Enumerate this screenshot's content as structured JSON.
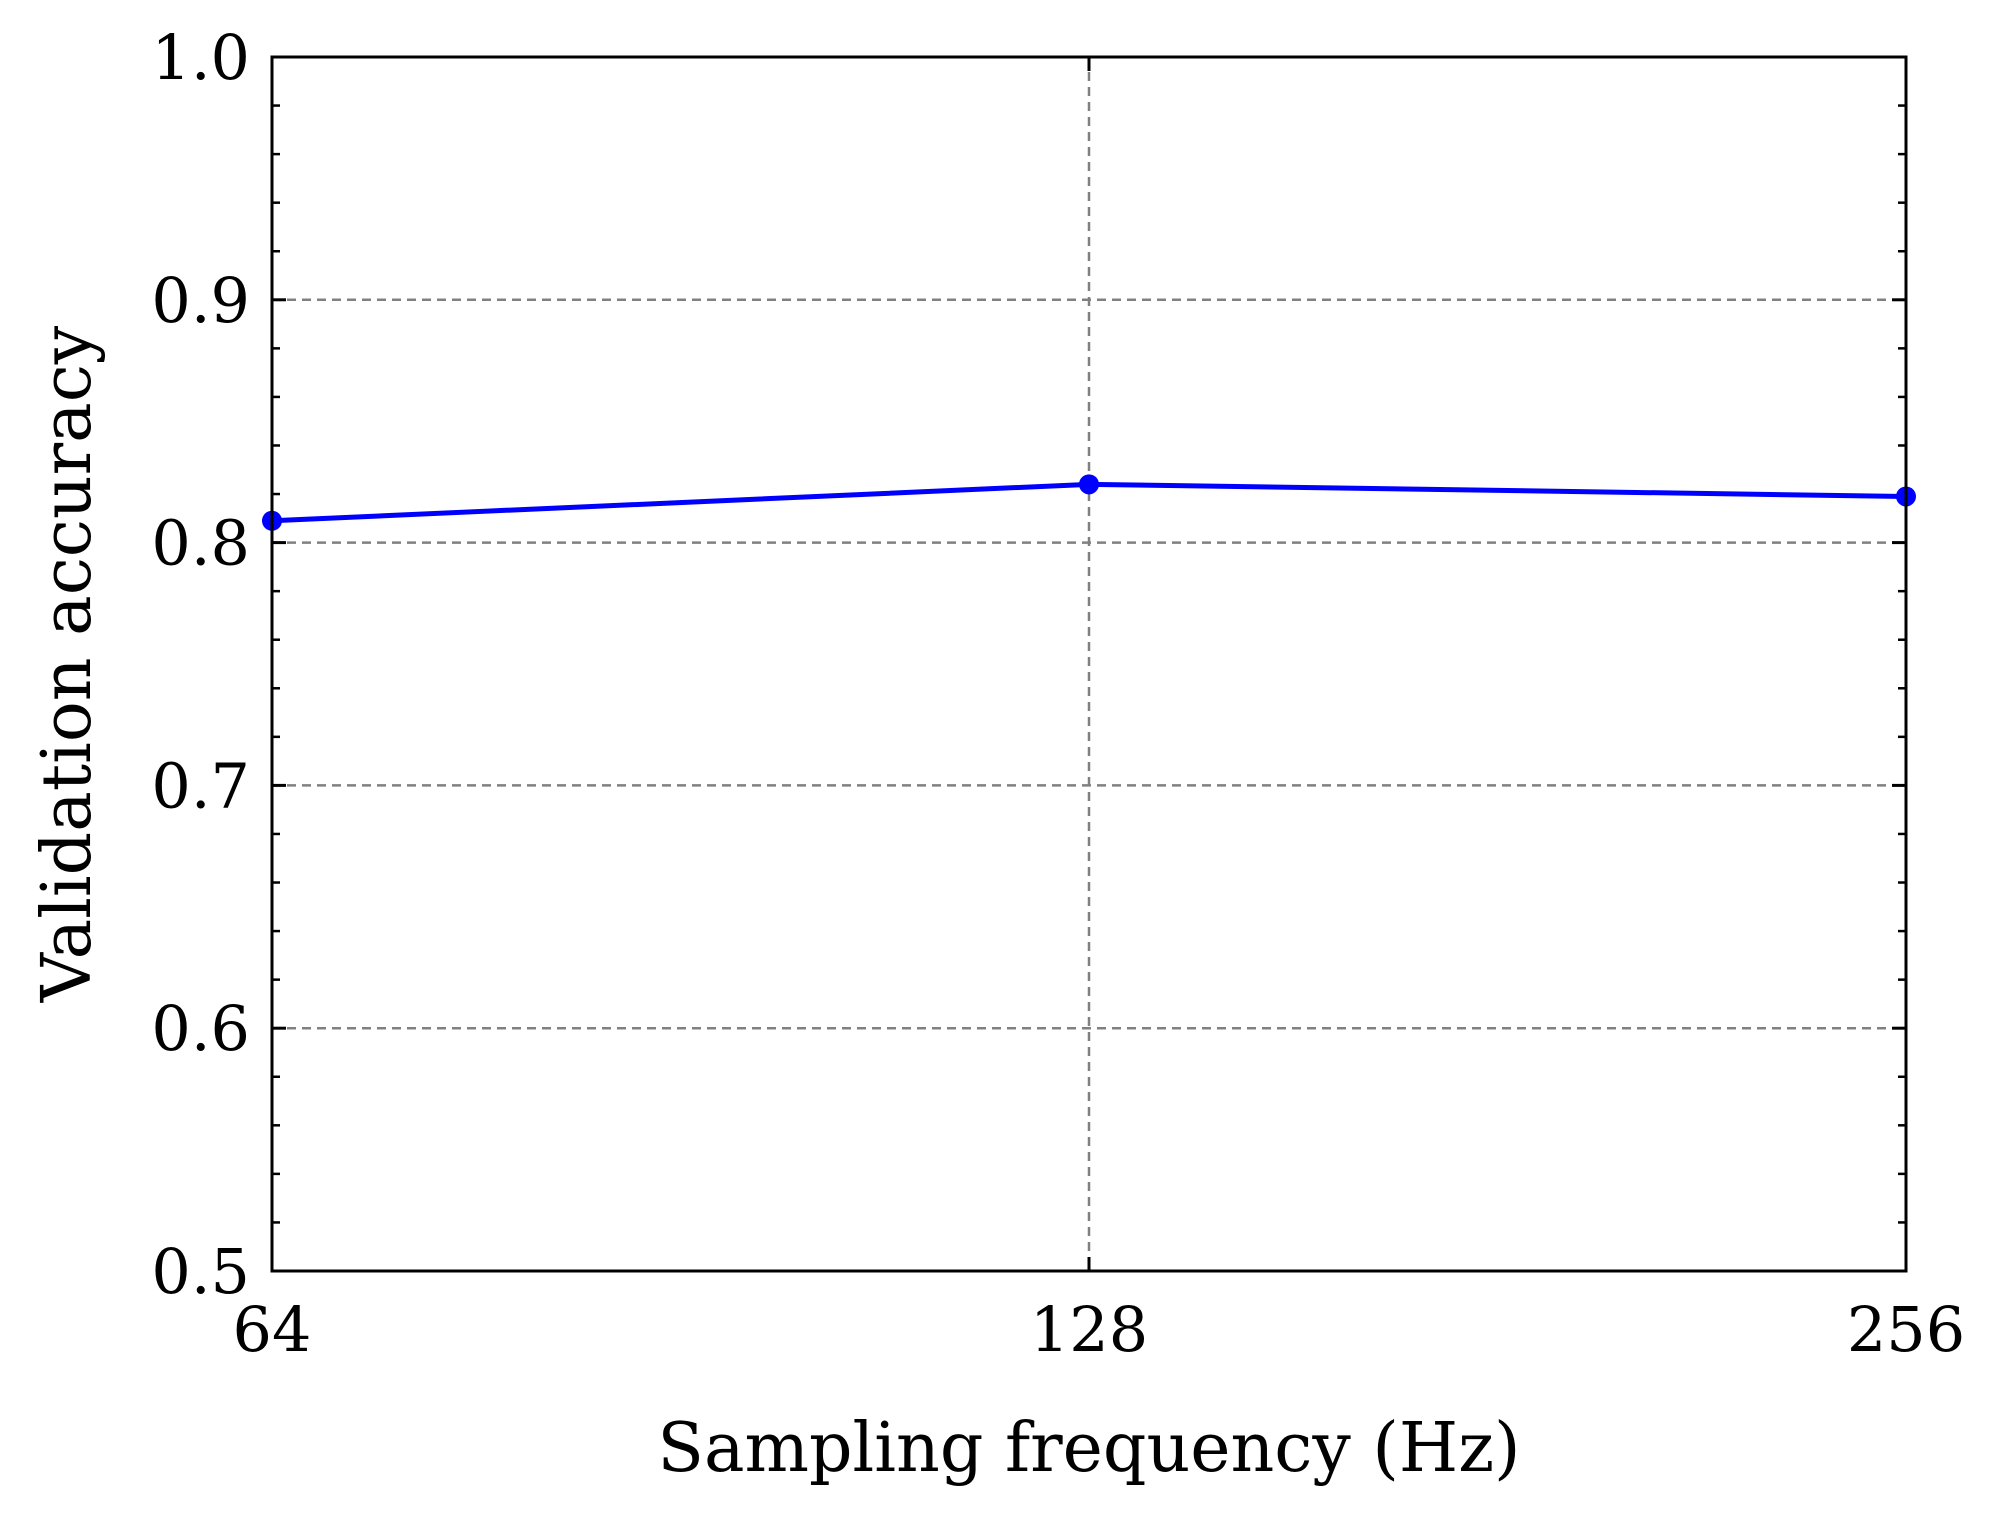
{
  "chart_data": {
    "type": "line",
    "x_categories": [
      "64",
      "128",
      "256"
    ],
    "y_ticks": [
      "0.5",
      "0.6",
      "0.7",
      "0.8",
      "0.9",
      "1.0"
    ],
    "ylim": [
      0.5,
      1.0
    ],
    "xlabel": "Sampling frequency (Hz)",
    "ylabel": "Validation accuracy",
    "grid": true,
    "series": [
      {
        "values": [
          0.809,
          0.824,
          0.819
        ],
        "color": "#0000ff"
      }
    ]
  }
}
